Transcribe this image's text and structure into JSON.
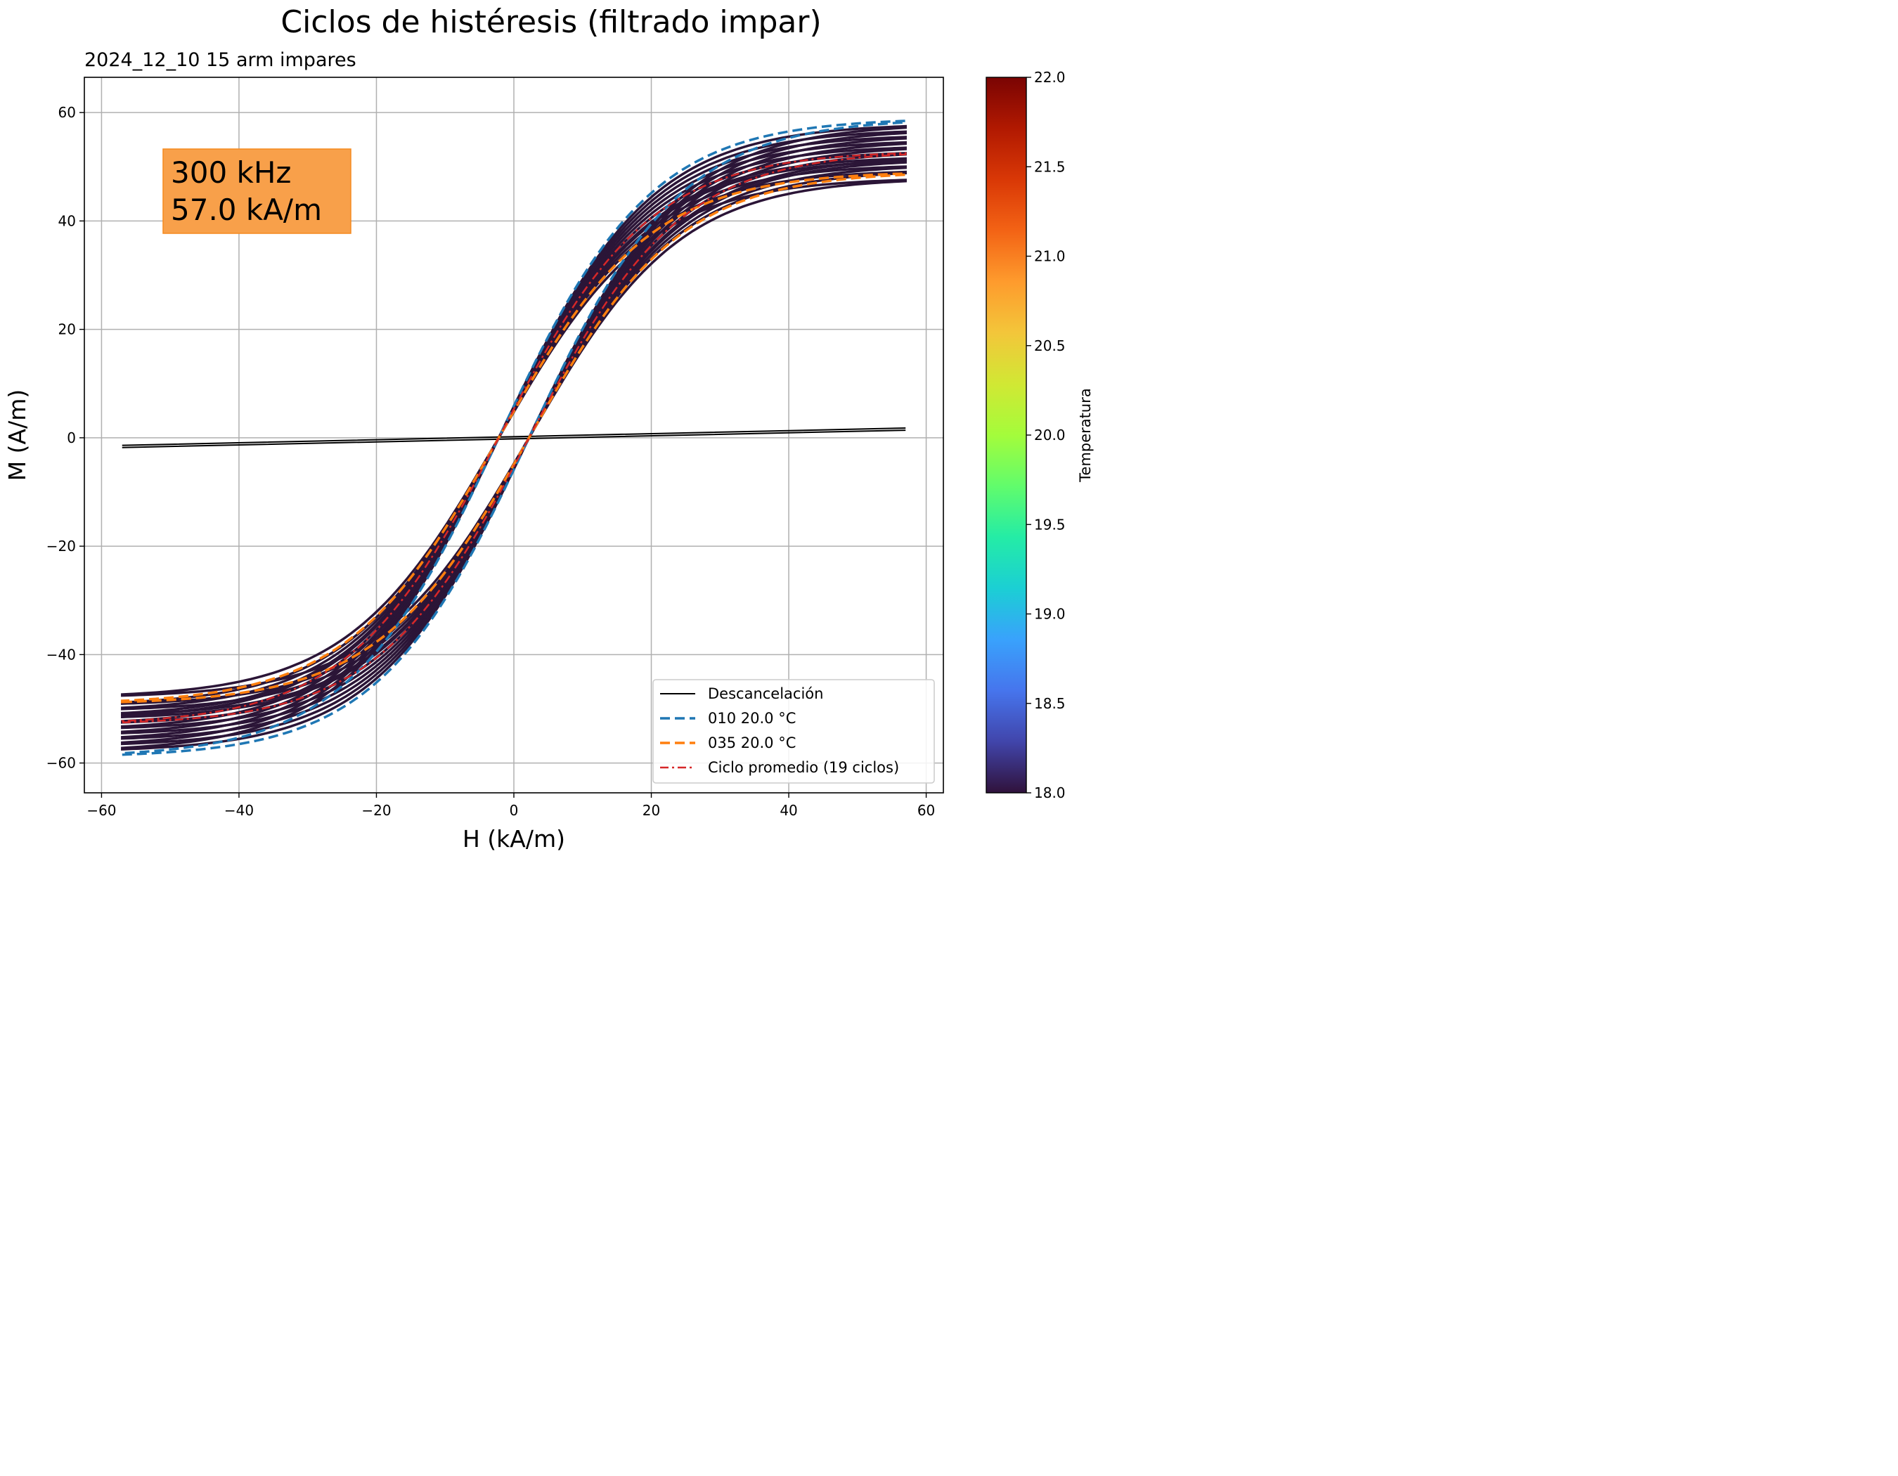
{
  "chart_data": {
    "type": "line",
    "title": "Ciclos de histéresis (filtrado impar)",
    "subtitle": "2024_12_10   15 arm impares",
    "xlabel": "H (kA/m)",
    "ylabel": "M (A/m)",
    "xlim": [
      -62.5,
      62.5
    ],
    "ylim": [
      -65.5,
      66.5
    ],
    "xticks": [
      -60,
      -40,
      -20,
      0,
      20,
      40,
      60
    ],
    "xtick_labels": [
      "−60",
      "−40",
      "−20",
      "0",
      "20",
      "40",
      "60"
    ],
    "yticks": [
      -60,
      -40,
      -20,
      0,
      20,
      40,
      60
    ],
    "ytick_labels": [
      "−60",
      "−40",
      "−20",
      "0",
      "20",
      "40",
      "60"
    ],
    "grid": true,
    "annotation": {
      "lines": [
        "300 kHz",
        "57.0 kA/m"
      ],
      "color": "#f8a04a"
    },
    "loop_model": {
      "description": "Hysteresis branches M = Ms * tanh((H ± Hc)/a) approximating the plotted cycles",
      "h_max": 57.0,
      "coercive_field": 2.2,
      "shape_a": 22,
      "background_Ms": [
        48,
        49.5,
        50.5,
        51.5,
        52,
        53,
        54,
        55,
        56,
        57,
        58
      ],
      "background_color": "#2b1537"
    },
    "series": [
      {
        "name": "Descancelación",
        "color": "#000000",
        "style": "solid",
        "width": 2.0,
        "kind": "linear",
        "slope": 0.028
      },
      {
        "name": "010  20.0 °C",
        "color": "#1f77b4",
        "style": "dashed",
        "width": 3.5,
        "kind": "loop",
        "Ms": 59.0
      },
      {
        "name": "035  20.0 °C",
        "color": "#ff7f0e",
        "style": "dashed",
        "width": 3.5,
        "kind": "loop",
        "Ms": 49.2
      },
      {
        "name": "Ciclo promedio (19 ciclos)",
        "color": "#d62728",
        "style": "dashdot",
        "width": 2.5,
        "kind": "loop",
        "Ms": 53.0
      }
    ],
    "legend": {
      "position": "lower-right"
    },
    "colorbar": {
      "label": "Temperatura",
      "range": [
        18.0,
        22.0
      ],
      "ticks": [
        "18.0",
        "18.5",
        "19.0",
        "19.5",
        "20.0",
        "20.5",
        "21.0",
        "21.5",
        "22.0"
      ],
      "stops": [
        "#30123b",
        "#4145ab",
        "#4675ed",
        "#39a2fc",
        "#1bcfd4",
        "#24eca6",
        "#61fc6c",
        "#a4fc3b",
        "#d1e834",
        "#f3c63a",
        "#fe9b2d",
        "#f36315",
        "#d93806",
        "#b11901",
        "#7a0403"
      ]
    }
  }
}
